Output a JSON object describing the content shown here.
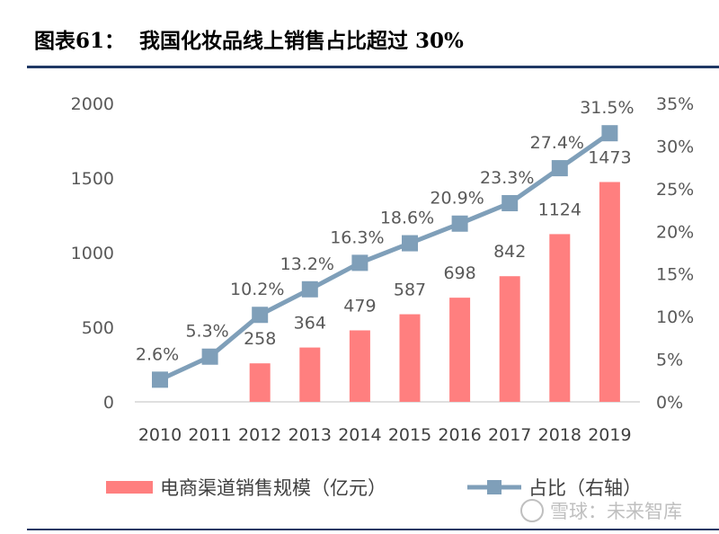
{
  "header": {
    "title": "图表61：  我国化妆品线上销售占比超过 30%"
  },
  "watermark": {
    "text": "雪球：未来智库"
  },
  "colors": {
    "bar": "#ff7f7f",
    "line": "#7f9fb9",
    "rule": "#1f3864"
  },
  "chart_data": {
    "type": "bar",
    "categories": [
      "2010",
      "2011",
      "2012",
      "2013",
      "2014",
      "2015",
      "2016",
      "2017",
      "2018",
      "2019"
    ],
    "series": [
      {
        "name": "电商渠道销售规模（亿元）",
        "type": "bar",
        "axis": "left",
        "values": [
          null,
          null,
          258,
          364,
          479,
          587,
          698,
          842,
          1124,
          1473
        ],
        "labels": [
          "",
          "",
          "258",
          "364",
          "479",
          "587",
          "698",
          "842",
          "1124",
          "1473"
        ]
      },
      {
        "name": "占比（右轴）",
        "type": "line",
        "axis": "right",
        "values": [
          2.6,
          5.3,
          10.2,
          13.2,
          16.3,
          18.6,
          20.9,
          23.3,
          27.4,
          31.5
        ],
        "labels": [
          "2.6%",
          "5.3%",
          "10.2%",
          "13.2%",
          "16.3%",
          "18.6%",
          "20.9%",
          "23.3%",
          "27.4%",
          "31.5%"
        ]
      }
    ],
    "y_left": {
      "min": 0,
      "max": 2000,
      "ticks": [
        "0",
        "500",
        "1000",
        "1500",
        "2000"
      ]
    },
    "y_right": {
      "min": 0,
      "max": 35,
      "ticks": [
        "0%",
        "5%",
        "10%",
        "15%",
        "20%",
        "25%",
        "30%",
        "35%"
      ]
    },
    "grid": false,
    "legend_position": "bottom"
  }
}
